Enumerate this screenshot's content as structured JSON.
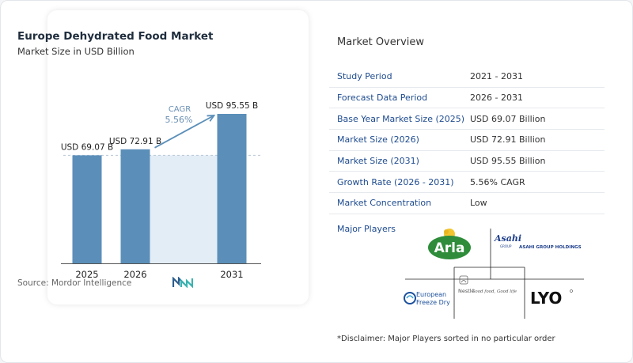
{
  "chart_data": {
    "type": "bar",
    "title": "Europe Dehydrated Food Market",
    "subtitle": "Market Size in USD Billion",
    "categories": [
      "2025",
      "2026",
      "2031"
    ],
    "values": [
      69.07,
      72.91,
      95.55
    ],
    "value_labels": [
      "USD 69.07 B",
      "USD 72.91 B",
      "USD 95.55 B"
    ],
    "cagr_label": "CAGR",
    "cagr_value": "5.56%",
    "source": "Source:  Mordor Intelligence",
    "colors": {
      "bar": "#5b8fb9",
      "shade": "#e3edf6",
      "arrow": "#5b8fb9",
      "cagr_text": "#6a8fb4",
      "axis": "#555555"
    }
  },
  "overview": {
    "title": "Market Overview",
    "rows": [
      {
        "label": "Study Period",
        "value": "2021 - 2031"
      },
      {
        "label": "Forecast Data Period",
        "value": "2026 - 2031"
      },
      {
        "label": "Base Year Market Size (2025)",
        "value": "USD 69.07 Billion"
      },
      {
        "label": "Market Size (2026)",
        "value": "USD 72.91 Billion"
      },
      {
        "label": "Market Size (2031)",
        "value": "USD 95.55 Billion"
      },
      {
        "label": "Growth Rate (2026 - 2031)",
        "value": "5.56% CAGR"
      },
      {
        "label": "Market Concentration",
        "value": "Low"
      }
    ],
    "players_label": "Major Players",
    "players": {
      "arla": "Arla",
      "asahi_mark": "Asahi",
      "asahi_sub": "GROUP",
      "asahi_name": "ASAHI GROUP HOLDINGS",
      "efd_line1": "European",
      "efd_line2": "Freeze Dry",
      "nestle": "Nestlé",
      "nestle_tagline": "Good food, Good life",
      "lyo": "LYO"
    },
    "disclaimer": "*Disclaimer: Major Players sorted in no particular order"
  }
}
